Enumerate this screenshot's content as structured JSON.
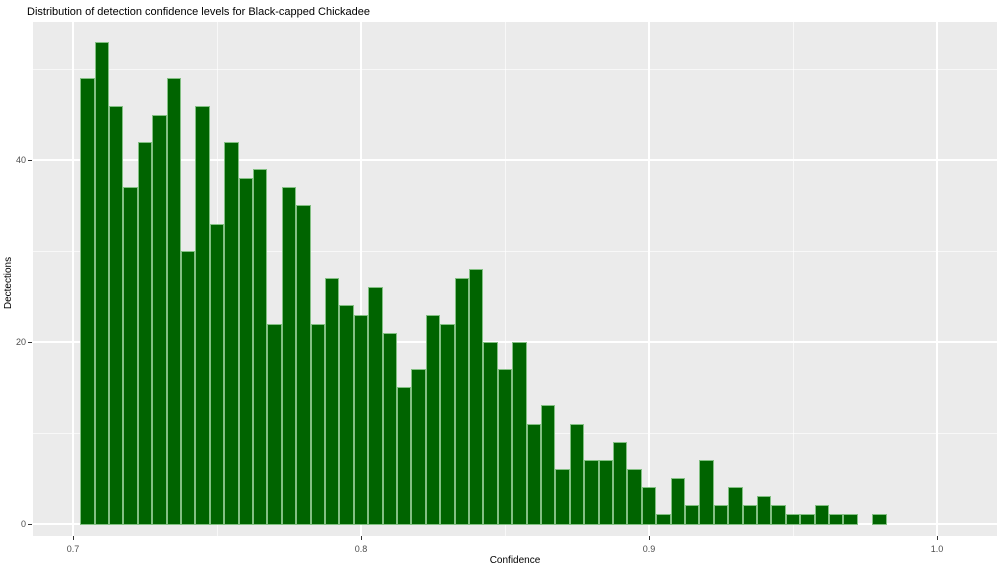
{
  "chart": {
    "title": "Distribution of detection confidence levels for Black-capped Chickadee",
    "xlabel": "Confidence",
    "ylabel": "Dectections",
    "colors": {
      "page_background": "#FFFFFF",
      "panel_background": "#EBEBEB",
      "grid_major": "#FFFFFF",
      "grid_minor": "#FFFFFF",
      "bar_fill": "#006400",
      "bar_border": "#83C083",
      "tick_mark": "#333333",
      "tick_label": "#4D4D4D",
      "title_text": "#000000"
    },
    "x_ticks": [
      {
        "value": 0.7,
        "label": "0.7"
      },
      {
        "value": 0.8,
        "label": "0.8"
      },
      {
        "value": 0.9,
        "label": "0.9"
      },
      {
        "value": 1.0,
        "label": "1.0"
      }
    ],
    "x_minor_ticks": [
      0.75,
      0.85,
      0.95
    ],
    "y_ticks": [
      {
        "value": 0,
        "label": "0"
      },
      {
        "value": 20,
        "label": "20"
      },
      {
        "value": 40,
        "label": "40"
      }
    ],
    "y_minor_ticks": [
      10,
      30,
      50
    ]
  },
  "chart_data": {
    "type": "bar",
    "subtype": "histogram",
    "title": "Distribution of detection confidence levels for Black-capped Chickadee",
    "xlabel": "Confidence",
    "ylabel": "Dectections",
    "bin_start": 0.7025,
    "bin_width": 0.005,
    "counts": [
      49,
      53,
      46,
      37,
      42,
      45,
      49,
      30,
      46,
      33,
      42,
      38,
      39,
      22,
      37,
      35,
      22,
      27,
      24,
      23,
      26,
      21,
      15,
      17,
      23,
      22,
      27,
      28,
      20,
      17,
      20,
      11,
      13,
      6,
      11,
      7,
      7,
      9,
      6,
      4,
      1,
      5,
      2,
      7,
      2,
      4,
      2,
      3,
      2,
      1,
      1,
      2,
      1,
      1,
      0,
      1
    ],
    "xlim": [
      0.686,
      1.021
    ],
    "ylim": [
      0,
      55.2
    ],
    "x_major_ticks": [
      0.7,
      0.8,
      0.9,
      1.0
    ],
    "y_major_ticks": [
      0,
      20,
      40
    ],
    "grid": true,
    "legend": false,
    "style": "ggplot-gray"
  }
}
